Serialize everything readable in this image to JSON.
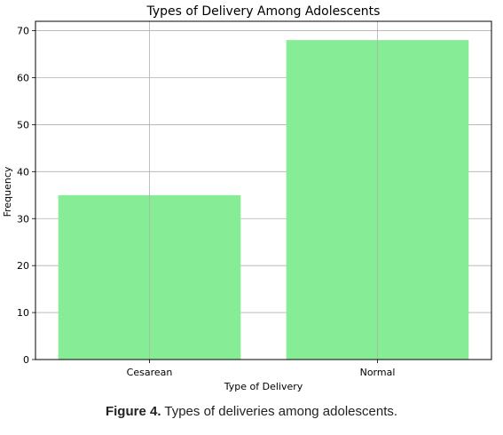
{
  "chart_data": {
    "type": "bar",
    "title": "Types of Delivery Among Adolescents",
    "xlabel": "Type of Delivery",
    "ylabel": "Frequency",
    "categories": [
      "Cesarean",
      "Normal"
    ],
    "values": [
      35,
      68
    ],
    "ylim": [
      0,
      72
    ],
    "yticks": [
      0,
      10,
      20,
      30,
      40,
      50,
      60,
      70
    ],
    "grid": true,
    "bar_color": "#86ec96"
  },
  "caption": {
    "label": "Figure 4.",
    "text": " Types of deliveries among adolescents."
  }
}
